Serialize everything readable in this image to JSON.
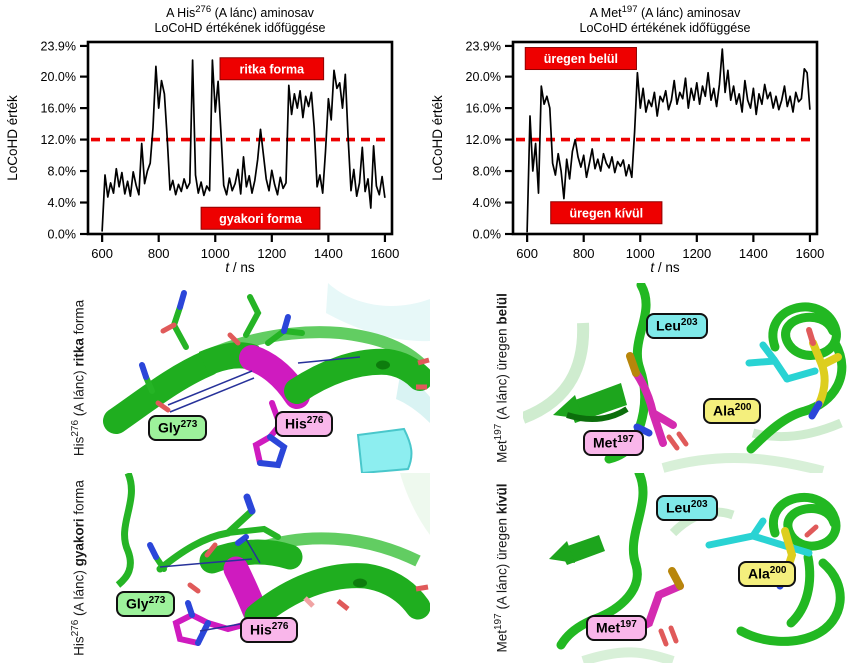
{
  "colors": {
    "series_line": "#000000",
    "threshold_red": "#ee0000",
    "annotation_red": "#ee0000",
    "annotation_text": "#ffffff",
    "ribbon_green": "#1fae1f",
    "segment_magenta": "#cf1bbf",
    "sidechain_pink_magenta": "#d42bb0",
    "stick_cyan": "#29d3d3",
    "stick_yellow": "#ddce1e",
    "sulfur_gold": "#b8860b",
    "nitrogen_blue": "#2b46d9",
    "oxygen_red": "#e05a5a",
    "tag_green": "#9df29b",
    "tag_pink": "#f9b6ea",
    "tag_cyan": "#7fe9e9",
    "tag_yellow": "#f4ef7d"
  },
  "chart_data": [
    {
      "type": "line",
      "title": {
        "pre": "A His",
        "sup": "276",
        "post": " (A lánc) aminosav",
        "line2": "LoCoHD értékének időfüggése"
      },
      "ylabel": "LoCoHD érték",
      "xlabel": {
        "italic": "t",
        "rest": " / ns"
      },
      "xlim": [
        550,
        1625
      ],
      "ylim": [
        0,
        24.4
      ],
      "grid": false,
      "yticks": [
        {
          "value": 23.9,
          "label": "23.9%"
        },
        {
          "value": 20.0,
          "label": "20.0%"
        },
        {
          "value": 16.0,
          "label": "16.0%"
        },
        {
          "value": 12.0,
          "label": "12.0%"
        },
        {
          "value": 8.0,
          "label": "8.0%"
        },
        {
          "value": 4.0,
          "label": "4.0%"
        },
        {
          "value": 0.0,
          "label": "0.0%"
        }
      ],
      "xticks": [
        {
          "value": 600,
          "label": "600"
        },
        {
          "value": 800,
          "label": "800"
        },
        {
          "value": 1000,
          "label": "1000"
        },
        {
          "value": 1200,
          "label": "1200"
        },
        {
          "value": 1400,
          "label": "1400"
        },
        {
          "value": 1600,
          "label": "1600"
        }
      ],
      "threshold": {
        "value": 12.0,
        "color": "#ee0000",
        "style": "dashed"
      },
      "annotations": [
        {
          "label": "ritka forma",
          "t": 1200,
          "y": 21.0,
          "color": "#ee0000"
        },
        {
          "label": "gyakori forma",
          "t": 1160,
          "y": 2.0,
          "color": "#ee0000"
        }
      ],
      "series": [
        {
          "name": "LoCoHD érték",
          "color": "#000000",
          "t": [
            600,
            610,
            620,
            630,
            640,
            650,
            660,
            670,
            680,
            690,
            700,
            710,
            720,
            730,
            740,
            750,
            760,
            770,
            780,
            790,
            800,
            810,
            820,
            830,
            840,
            850,
            860,
            870,
            880,
            890,
            900,
            910,
            920,
            930,
            940,
            950,
            960,
            970,
            980,
            990,
            1000,
            1010,
            1020,
            1030,
            1040,
            1050,
            1060,
            1070,
            1080,
            1090,
            1100,
            1110,
            1120,
            1130,
            1140,
            1150,
            1160,
            1170,
            1180,
            1190,
            1200,
            1210,
            1220,
            1230,
            1240,
            1250,
            1260,
            1270,
            1280,
            1290,
            1300,
            1310,
            1320,
            1330,
            1340,
            1350,
            1360,
            1370,
            1380,
            1390,
            1400,
            1410,
            1420,
            1430,
            1440,
            1450,
            1460,
            1470,
            1480,
            1490,
            1500,
            1510,
            1520,
            1530,
            1540,
            1550,
            1560,
            1570,
            1580,
            1590,
            1600
          ],
          "y": [
            0.3,
            7.5,
            4.7,
            6.5,
            5.2,
            8.3,
            6.0,
            7.8,
            5.1,
            6.7,
            4.8,
            7.9,
            6.2,
            5.0,
            11.5,
            6.4,
            8.0,
            9.0,
            13.5,
            21.3,
            16.0,
            19.5,
            17.8,
            12.2,
            5.6,
            6.8,
            5.0,
            6.3,
            5.4,
            7.0,
            5.8,
            6.5,
            22.1,
            7.5,
            5.2,
            6.6,
            4.9,
            6.1,
            5.5,
            22.1,
            15.5,
            19.4,
            13.0,
            6.2,
            5.0,
            7.1,
            5.5,
            6.4,
            8.2,
            5.1,
            9.8,
            6.0,
            7.4,
            5.2,
            6.8,
            9.5,
            13.3,
            10.2,
            7.0,
            5.5,
            8.1,
            6.3,
            5.0,
            7.2,
            5.8,
            6.5,
            18.9,
            15.2,
            17.8,
            16.0,
            18.2,
            14.8,
            17.5,
            16.2,
            18.0,
            13.5,
            6.0,
            7.5,
            5.2,
            10.5,
            17.2,
            14.5,
            20.8,
            18.5,
            19.2,
            16.0,
            20.3,
            12.0,
            5.5,
            8.2,
            4.8,
            6.5,
            11.0,
            5.4,
            7.0,
            3.3,
            11.2,
            6.1,
            5.0,
            7.3,
            4.6
          ]
        }
      ]
    },
    {
      "type": "line",
      "title": {
        "pre": "A Met",
        "sup": "197",
        "post": " (A lánc) aminosav",
        "line2": "LoCoHD értékének időfüggése"
      },
      "ylabel": "LoCoHD érték",
      "xlabel": {
        "italic": "t",
        "rest": " / ns"
      },
      "xlim": [
        550,
        1625
      ],
      "ylim": [
        0,
        24.4
      ],
      "grid": false,
      "yticks": [
        {
          "value": 23.9,
          "label": "23.9%"
        },
        {
          "value": 20.0,
          "label": "20.0%"
        },
        {
          "value": 16.0,
          "label": "16.0%"
        },
        {
          "value": 12.0,
          "label": "12.0%"
        },
        {
          "value": 8.0,
          "label": "8.0%"
        },
        {
          "value": 4.0,
          "label": "4.0%"
        },
        {
          "value": 0.0,
          "label": "0.0%"
        }
      ],
      "xticks": [
        {
          "value": 600,
          "label": "600"
        },
        {
          "value": 800,
          "label": "800"
        },
        {
          "value": 1000,
          "label": "1000"
        },
        {
          "value": 1200,
          "label": "1200"
        },
        {
          "value": 1400,
          "label": "1400"
        },
        {
          "value": 1600,
          "label": "1600"
        }
      ],
      "threshold": {
        "value": 12.0,
        "color": "#ee0000",
        "style": "dashed"
      },
      "annotations": [
        {
          "label": "üregen belül",
          "t": 790,
          "y": 22.3,
          "color": "#ee0000"
        },
        {
          "label": "üregen kívül",
          "t": 880,
          "y": 2.7,
          "color": "#ee0000"
        }
      ],
      "series": [
        {
          "name": "LoCoHD érték",
          "color": "#000000",
          "t": [
            600,
            610,
            620,
            630,
            640,
            650,
            660,
            670,
            680,
            690,
            700,
            710,
            720,
            730,
            740,
            750,
            760,
            770,
            780,
            790,
            800,
            810,
            820,
            830,
            840,
            850,
            860,
            870,
            880,
            890,
            900,
            910,
            920,
            930,
            940,
            950,
            960,
            970,
            980,
            990,
            1000,
            1010,
            1020,
            1030,
            1040,
            1050,
            1060,
            1070,
            1080,
            1090,
            1100,
            1110,
            1120,
            1130,
            1140,
            1150,
            1160,
            1170,
            1180,
            1190,
            1200,
            1210,
            1220,
            1230,
            1240,
            1250,
            1260,
            1270,
            1280,
            1290,
            1300,
            1310,
            1320,
            1330,
            1340,
            1350,
            1360,
            1370,
            1380,
            1390,
            1400,
            1410,
            1420,
            1430,
            1440,
            1450,
            1460,
            1470,
            1480,
            1490,
            1500,
            1510,
            1520,
            1530,
            1540,
            1550,
            1560,
            1570,
            1580,
            1590,
            1600
          ],
          "y": [
            0.2,
            15.0,
            8.0,
            11.5,
            5.2,
            18.8,
            16.5,
            17.5,
            16.0,
            9.0,
            7.5,
            10.2,
            8.0,
            4.5,
            9.5,
            7.0,
            10.5,
            12.0,
            9.8,
            8.5,
            10.0,
            7.2,
            9.0,
            10.8,
            8.3,
            9.5,
            8.0,
            10.2,
            9.0,
            8.4,
            9.8,
            7.8,
            9.2,
            8.6,
            9.4,
            7.4,
            8.8,
            7.2,
            13.0,
            20.5,
            16.0,
            18.5,
            15.5,
            17.0,
            16.2,
            18.0,
            15.0,
            17.5,
            16.8,
            18.2,
            15.8,
            17.0,
            19.5,
            16.5,
            18.0,
            17.2,
            19.8,
            16.0,
            18.5,
            17.0,
            19.2,
            16.5,
            18.8,
            17.5,
            20.5,
            17.0,
            18.5,
            16.2,
            19.0,
            23.5,
            18.0,
            20.8,
            17.0,
            18.8,
            16.5,
            17.8,
            15.5,
            19.5,
            17.0,
            16.0,
            18.5,
            15.2,
            17.8,
            16.5,
            19.0,
            17.2,
            18.0,
            16.0,
            17.5,
            15.8,
            17.0,
            18.8,
            16.2,
            17.5,
            15.5,
            18.0,
            16.8,
            17.2,
            21.0,
            20.5,
            15.8
          ]
        }
      ]
    }
  ],
  "panels": [
    {
      "side_label": {
        "pre": "His",
        "sup": "276",
        "mid": " (A lánc) ",
        "bold": "ritka",
        "post": " forma"
      },
      "tags": [
        {
          "name": "Gly",
          "num": "273",
          "color": "#9df29b"
        },
        {
          "name": "His",
          "num": "276",
          "color": "#f9b6ea"
        }
      ]
    },
    {
      "side_label": {
        "pre": "His",
        "sup": "276",
        "mid": " (A lánc) ",
        "bold": "gyakori",
        "post": " forma"
      },
      "tags": [
        {
          "name": "Gly",
          "num": "273",
          "color": "#9df29b"
        },
        {
          "name": "His",
          "num": "276",
          "color": "#f9b6ea"
        }
      ]
    },
    {
      "side_label": {
        "pre": "Met",
        "sup": "197",
        "mid": " (A lánc) üregen ",
        "bold": "belül",
        "post": ""
      },
      "tags": [
        {
          "name": "Leu",
          "num": "203",
          "color": "#7fe9e9"
        },
        {
          "name": "Ala",
          "num": "200",
          "color": "#f4ef7d"
        },
        {
          "name": "Met",
          "num": "197",
          "color": "#f9b6ea"
        }
      ]
    },
    {
      "side_label": {
        "pre": "Met",
        "sup": "197",
        "mid": " (A lánc) üregen ",
        "bold": "kívül",
        "post": ""
      },
      "tags": [
        {
          "name": "Leu",
          "num": "203",
          "color": "#7fe9e9"
        },
        {
          "name": "Ala",
          "num": "200",
          "color": "#f4ef7d"
        },
        {
          "name": "Met",
          "num": "197",
          "color": "#f9b6ea"
        }
      ]
    }
  ]
}
